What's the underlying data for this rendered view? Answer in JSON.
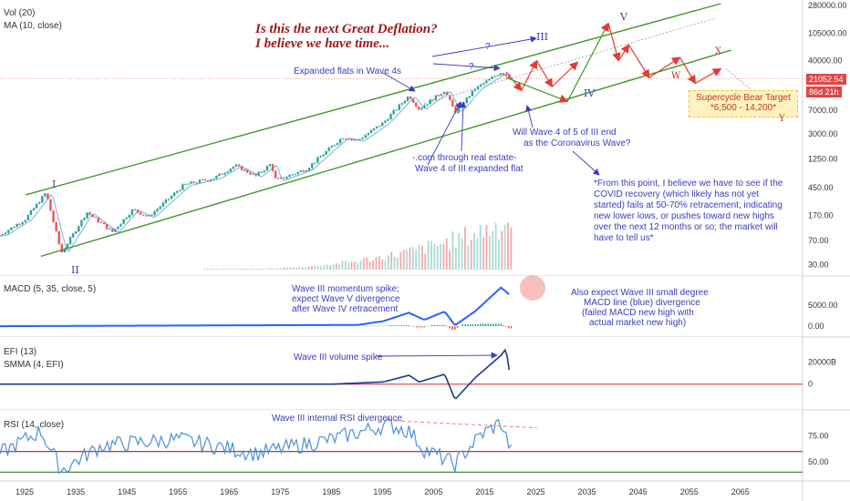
{
  "panes": {
    "price": {
      "vol_label": "Vol (20)",
      "ma_label": "MA (10, close)"
    },
    "macd": {
      "label": "MACD (5, 35, close, 5)"
    },
    "efi": {
      "label": "EFI (13)",
      "smma_label": "SMMA (4, EFI)"
    },
    "rsi": {
      "label": "RSI (14, close)"
    }
  },
  "title": {
    "line1": "Is this the next Great Deflation?",
    "line2": "I believe we have time..."
  },
  "annotations": {
    "expanded_flats": "Expanded flats in Wave 4s",
    "question1": "?",
    "question2": "?",
    "com_line1": "-.com through real estate-",
    "com_line2": "Wave 4 of III expanded flat",
    "wave4_line1": "Will Wave 4 of 5 of III end",
    "wave4_line2": "as the Coronavirus Wave?",
    "covid": "*From this point, I believe we have to see if the COVID recovery (which likely has not yet started) fails at 50-70% retracement, indicating new lower lows, or pushes toward new highs over the next 12 months or so; the market will have to tell us*",
    "macd_note_line1": "Wave III momentum spike;",
    "macd_note_line2": "expect Wave V divergence",
    "macd_note_line3": "after Wave IV retracement",
    "macd_div_line1": "Also expect Wave III small degree",
    "macd_div_line2": "MACD line (blue) divergence",
    "macd_div_line3": "(failed MACD new high with",
    "macd_div_line4": "actual market new high)",
    "efi_note": "Wave III volume spike",
    "rsi_note": "Wave III internal RSI divergence",
    "target_line1": "Supercycle Bear Target",
    "target_line2": "*6,500 - 14,200*"
  },
  "wave_labels": {
    "I": "I",
    "II": "II",
    "III": "III",
    "IV": "IV",
    "V": "V",
    "W": "W",
    "X": "X",
    "Y": "Y"
  },
  "price_tags": {
    "last": "21052.54",
    "countdown": "86d 21h"
  },
  "colors": {
    "up": "#26a69a",
    "down": "#ef5350",
    "channel": "#3d9a2a",
    "macd": "#2962ff",
    "efi": "#1b3a8c",
    "rsi": "#4a90d9",
    "annotation": "#3b3bbd",
    "arrow": "#e53935"
  },
  "chart_data": [
    {
      "type": "line",
      "pane": "price",
      "scale": "log",
      "ylim": [
        25,
        300000
      ],
      "y_ticks": [
        "280000.00",
        "105000.00",
        "40000.00",
        "7000.00",
        "3000.00",
        "1250.00",
        "450.00",
        "170.00",
        "70.00",
        "30.00"
      ],
      "x_ticks": [
        "1925",
        "1935",
        "1945",
        "1955",
        "1965",
        "1975",
        "1985",
        "1995",
        "2005",
        "2015",
        "2025",
        "2035",
        "2045",
        "2055",
        "2065"
      ],
      "series": [
        {
          "x": [
            1920,
            1925,
            1929,
            1932,
            1937,
            1942,
            1946,
            1949,
            1956,
            1962,
            1966,
            1970,
            1973,
            1974,
            1980,
            1987,
            1990,
            1995,
            2000,
            2002,
            2007,
            2009,
            2013,
            2018,
            2020
          ],
          "values": [
            85,
            150,
            380,
            45,
            190,
            95,
            210,
            160,
            500,
            640,
            990,
            680,
            1050,
            580,
            880,
            2700,
            2400,
            4500,
            11700,
            7300,
            14100,
            6500,
            15000,
            26800,
            21052.54
          ]
        }
      ]
    },
    {
      "type": "line",
      "pane": "macd",
      "y_ticks": [
        "5000.00",
        "0.00"
      ],
      "series": [
        {
          "x": [
            1920,
            1990,
            1995,
            2000,
            2003,
            2007,
            2009,
            2013,
            2018,
            2020
          ],
          "values": [
            0,
            300,
            1200,
            3200,
            1500,
            3500,
            200,
            3600,
            9200,
            7200
          ]
        }
      ]
    },
    {
      "type": "line",
      "pane": "efi",
      "y_ticks": [
        "20000B",
        "0"
      ],
      "series": [
        {
          "x": [
            1920,
            1985,
            1995,
            2000,
            2002,
            2007,
            2009,
            2013,
            2018,
            2019,
            2020
          ],
          "values": [
            0,
            0,
            2000,
            8000,
            2000,
            9000,
            -14000,
            6000,
            26000,
            32000,
            0
          ]
        }
      ]
    },
    {
      "type": "line",
      "pane": "rsi",
      "y_ticks": [
        "75.00",
        "50.00"
      ],
      "series": [
        {
          "x": [
            1920,
            1928,
            1932,
            1940,
            1955,
            1970,
            1985,
            1996,
            2000,
            2003,
            2009,
            2014,
            2018,
            2020
          ],
          "values": [
            58,
            80,
            42,
            66,
            72,
            58,
            72,
            86,
            80,
            62,
            48,
            76,
            88,
            60
          ]
        }
      ]
    }
  ]
}
